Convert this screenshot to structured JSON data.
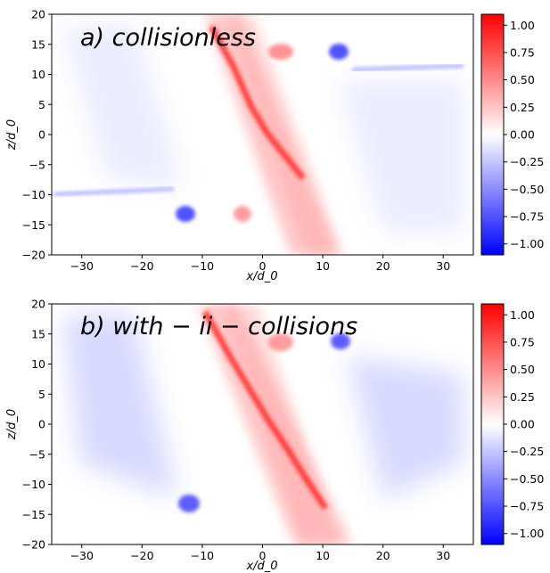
{
  "chart_data": [
    {
      "type": "heatmap",
      "title": "a) collisionless",
      "xlabel": "x/d_0",
      "ylabel": "z/d_0",
      "xlim": [
        -35,
        35
      ],
      "ylim": [
        -20,
        20
      ],
      "x_ticks": [
        -30,
        -20,
        -10,
        0,
        10,
        20,
        30
      ],
      "y_ticks": [
        -20,
        -15,
        -10,
        -5,
        0,
        5,
        10,
        15,
        20
      ],
      "colorbar": {
        "range": [
          -1.1,
          1.1
        ],
        "ticks": [
          1.0,
          0.75,
          0.5,
          0.25,
          0.0,
          -0.25,
          -0.5,
          -0.75,
          -1.0
        ],
        "tick_labels": [
          "1.00",
          "0.75",
          "0.50",
          "0.25",
          "0.00",
          "−0.25",
          "−0.50",
          "−0.75",
          "−1.00"
        ],
        "colormap": "bwr"
      },
      "features": [
        {
          "sign": "positive",
          "desc": "diagonal current sheet",
          "x": [
            -8,
            8
          ],
          "z": [
            20,
            -20
          ]
        },
        {
          "sign": "negative",
          "desc": "blob",
          "x": 13,
          "z": 13.5
        },
        {
          "sign": "negative",
          "desc": "blob",
          "x": -13,
          "z": -12.5
        },
        {
          "sign": "negative",
          "desc": "streak",
          "x": [
            14,
            34
          ],
          "z": 11
        },
        {
          "sign": "negative",
          "desc": "streak",
          "x": [
            -34,
            -16
          ],
          "z": -10
        }
      ]
    },
    {
      "type": "heatmap",
      "title": "b) with − ii − collisions",
      "xlabel": "x/d_0",
      "ylabel": "z/d_0",
      "xlim": [
        -35,
        35
      ],
      "ylim": [
        -20,
        20
      ],
      "x_ticks": [
        -30,
        -20,
        -10,
        0,
        10,
        20,
        30
      ],
      "y_ticks": [
        -20,
        -15,
        -10,
        -5,
        0,
        5,
        10,
        15,
        20
      ],
      "colorbar": {
        "range": [
          -1.1,
          1.1
        ],
        "ticks": [
          1.0,
          0.75,
          0.5,
          0.25,
          0.0,
          -0.25,
          -0.5,
          -0.75,
          -1.0
        ],
        "tick_labels": [
          "1.00",
          "0.75",
          "0.50",
          "0.25",
          "0.00",
          "−0.25",
          "−0.50",
          "−0.75",
          "−1.00"
        ],
        "colormap": "bwr"
      },
      "features": [
        {
          "sign": "positive",
          "desc": "diagonal current sheet",
          "x": [
            -8,
            8
          ],
          "z": [
            20,
            -20
          ]
        },
        {
          "sign": "negative",
          "desc": "blob",
          "x": 13,
          "z": 13.5
        },
        {
          "sign": "negative",
          "desc": "blob",
          "x": -12.5,
          "z": -12.5
        },
        {
          "sign": "negative",
          "desc": "diffuse wedge",
          "x": [
            15,
            33
          ],
          "z": [
            10,
            -15
          ]
        },
        {
          "sign": "negative",
          "desc": "diffuse wedge",
          "x": [
            -33,
            -15
          ],
          "z": [
            17,
            -12
          ]
        }
      ]
    }
  ]
}
